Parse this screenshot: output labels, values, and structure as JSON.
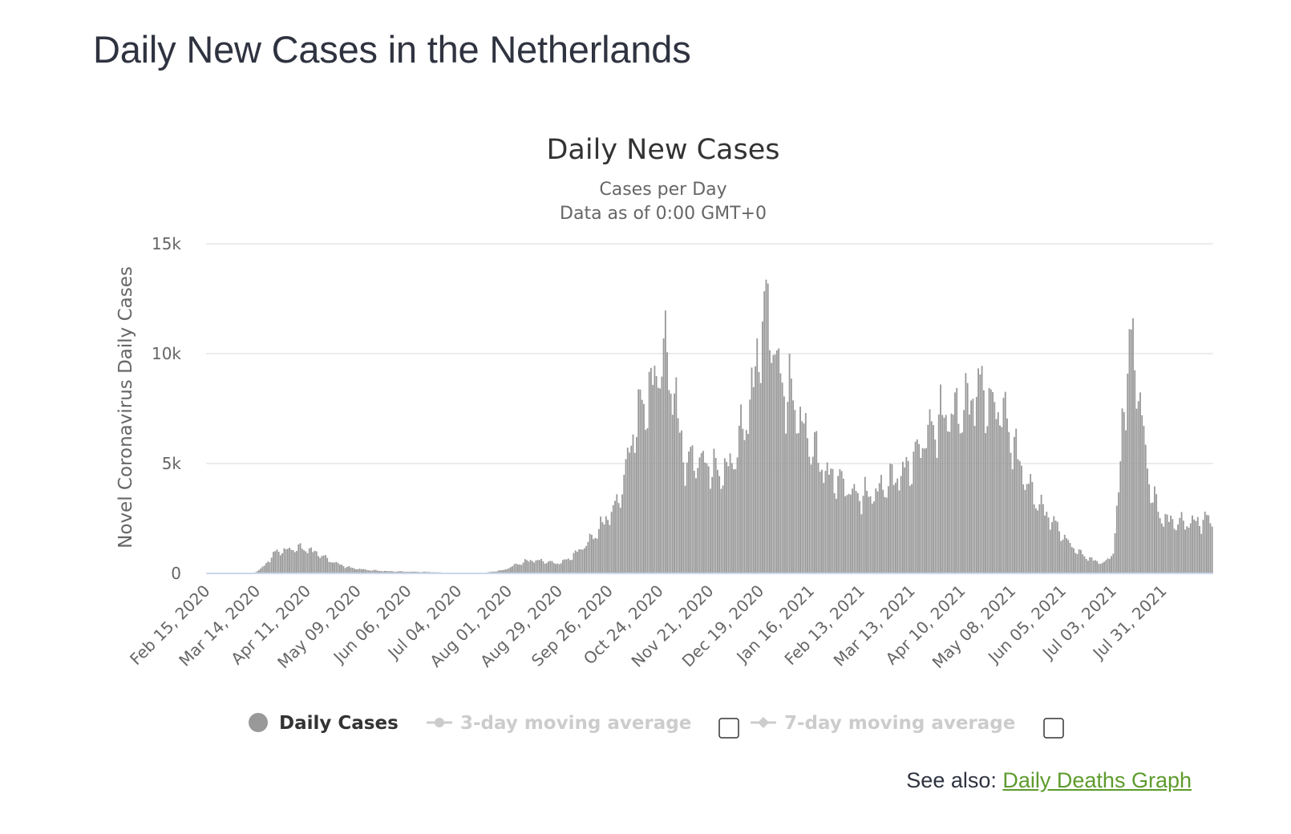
{
  "page": {
    "title": "Daily New Cases in the Netherlands",
    "see_also_label": "See also:",
    "see_also_link": "Daily Deaths Graph"
  },
  "colors": {
    "bar": "#999999",
    "grid": "#e6e6e6",
    "axis": "#ccd6eb",
    "legend_active": "#333333",
    "legend_inactive": "#cccccc",
    "link": "#5d9b2c"
  },
  "chart_data": {
    "type": "bar",
    "title": "Daily New Cases",
    "subtitle_lines": [
      "Cases per Day",
      "Data as of 0:00 GMT+0"
    ],
    "ylabel": "Novel Coronavirus Daily Cases",
    "xlabel": "",
    "ylim": [
      0,
      15000
    ],
    "yticks": [
      {
        "value": 0,
        "label": "0"
      },
      {
        "value": 5000,
        "label": "5k"
      },
      {
        "value": 10000,
        "label": "10k"
      },
      {
        "value": 15000,
        "label": "15k"
      }
    ],
    "x_start": "Feb 15, 2020",
    "day_count": 560,
    "xticks": [
      {
        "day": 0,
        "label": "Feb 15, 2020"
      },
      {
        "day": 28,
        "label": "Mar 14, 2020"
      },
      {
        "day": 56,
        "label": "Apr 11, 2020"
      },
      {
        "day": 84,
        "label": "May 09, 2020"
      },
      {
        "day": 112,
        "label": "Jun 06, 2020"
      },
      {
        "day": 140,
        "label": "Jul 04, 2020"
      },
      {
        "day": 168,
        "label": "Aug 01, 2020"
      },
      {
        "day": 196,
        "label": "Aug 29, 2020"
      },
      {
        "day": 224,
        "label": "Sep 26, 2020"
      },
      {
        "day": 252,
        "label": "Oct 24, 2020"
      },
      {
        "day": 280,
        "label": "Nov 21, 2020"
      },
      {
        "day": 308,
        "label": "Dec 19, 2020"
      },
      {
        "day": 336,
        "label": "Jan 16, 2021"
      },
      {
        "day": 364,
        "label": "Feb 13, 2021"
      },
      {
        "day": 392,
        "label": "Mar 13, 2021"
      },
      {
        "day": 420,
        "label": "Apr 10, 2021"
      },
      {
        "day": 448,
        "label": "May 08, 2021"
      },
      {
        "day": 476,
        "label": "Jun 05, 2021"
      },
      {
        "day": 504,
        "label": "Jul 03, 2021"
      },
      {
        "day": 532,
        "label": "Jul 31, 2021"
      }
    ],
    "series": [
      {
        "name": "Daily Cases",
        "trend_anchors": [
          [
            0,
            0
          ],
          [
            24,
            0
          ],
          [
            27,
            60
          ],
          [
            30,
            200
          ],
          [
            33,
            450
          ],
          [
            36,
            750
          ],
          [
            39,
            1000
          ],
          [
            44,
            1050
          ],
          [
            50,
            1150
          ],
          [
            56,
            1100
          ],
          [
            62,
            900
          ],
          [
            68,
            600
          ],
          [
            74,
            400
          ],
          [
            80,
            250
          ],
          [
            90,
            150
          ],
          [
            100,
            100
          ],
          [
            110,
            80
          ],
          [
            125,
            60
          ],
          [
            135,
            20
          ],
          [
            150,
            10
          ],
          [
            155,
            30
          ],
          [
            165,
            150
          ],
          [
            172,
            400
          ],
          [
            180,
            600
          ],
          [
            188,
            550
          ],
          [
            195,
            450
          ],
          [
            200,
            600
          ],
          [
            205,
            900
          ],
          [
            212,
            1400
          ],
          [
            218,
            2000
          ],
          [
            224,
            2700
          ],
          [
            228,
            3100
          ],
          [
            232,
            4300
          ],
          [
            236,
            6000
          ],
          [
            240,
            7200
          ],
          [
            245,
            8000
          ],
          [
            250,
            9000
          ],
          [
            254,
            10000
          ],
          [
            258,
            9000
          ],
          [
            262,
            7000
          ],
          [
            266,
            5000
          ],
          [
            272,
            5200
          ],
          [
            278,
            5000
          ],
          [
            285,
            4500
          ],
          [
            292,
            5000
          ],
          [
            296,
            6000
          ],
          [
            300,
            7000
          ],
          [
            304,
            8500
          ],
          [
            308,
            11000
          ],
          [
            312,
            12000
          ],
          [
            316,
            10000
          ],
          [
            320,
            8500
          ],
          [
            325,
            8000
          ],
          [
            330,
            7000
          ],
          [
            335,
            6000
          ],
          [
            340,
            5200
          ],
          [
            345,
            4500
          ],
          [
            352,
            4200
          ],
          [
            360,
            3600
          ],
          [
            368,
            3500
          ],
          [
            374,
            3800
          ],
          [
            380,
            4200
          ],
          [
            386,
            4500
          ],
          [
            392,
            5000
          ],
          [
            398,
            6000
          ],
          [
            405,
            6800
          ],
          [
            412,
            7200
          ],
          [
            418,
            7300
          ],
          [
            424,
            7800
          ],
          [
            430,
            8500
          ],
          [
            436,
            7600
          ],
          [
            442,
            7500
          ],
          [
            448,
            6000
          ],
          [
            454,
            4500
          ],
          [
            460,
            3500
          ],
          [
            466,
            2800
          ],
          [
            472,
            2200
          ],
          [
            478,
            1500
          ],
          [
            484,
            1000
          ],
          [
            490,
            700
          ],
          [
            496,
            500
          ],
          [
            500,
            500
          ],
          [
            504,
            1000
          ],
          [
            507,
            3500
          ],
          [
            509,
            7000
          ],
          [
            512,
            9200
          ],
          [
            515,
            10500
          ],
          [
            518,
            8500
          ],
          [
            521,
            6200
          ],
          [
            524,
            4200
          ],
          [
            527,
            3300
          ],
          [
            530,
            2600
          ],
          [
            535,
            2400
          ],
          [
            540,
            2300
          ],
          [
            545,
            2300
          ],
          [
            550,
            2350
          ],
          [
            555,
            2400
          ],
          [
            559,
            2500
          ]
        ],
        "weekday_factors": [
          0.85,
          1.0,
          1.12,
          1.1,
          1.05,
          0.98,
          0.9
        ]
      }
    ],
    "legend": [
      {
        "label": "Daily Cases",
        "active": true,
        "marker": "circle"
      },
      {
        "label": "3-day moving average",
        "active": false,
        "marker": "line-circle"
      },
      {
        "label": "7-day moving average",
        "active": false,
        "marker": "line-diamond"
      }
    ]
  }
}
